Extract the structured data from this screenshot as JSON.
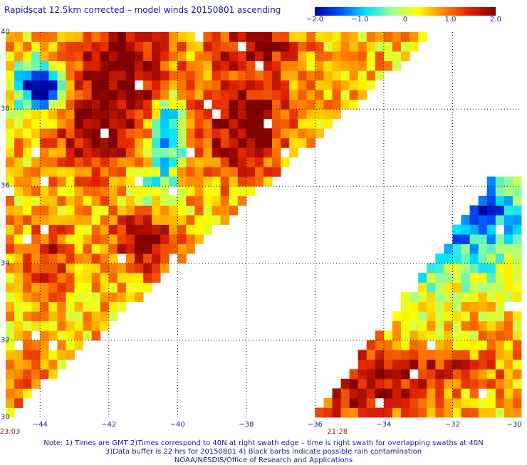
{
  "title": "Rapidscat 12.5km corrected – model winds 20150801 ascending",
  "colorbar": {
    "ticks": [
      {
        "value": -2.0,
        "label": "−2.0"
      },
      {
        "value": -1.0,
        "label": "−1.0"
      },
      {
        "value": 0,
        "label": "0"
      },
      {
        "value": 1.0,
        "label": "1.0"
      },
      {
        "value": 2.0,
        "label": "2.0"
      }
    ],
    "range": [
      -2.0,
      2.0
    ],
    "stops": [
      "#0000a0",
      "#0050ff",
      "#00e0ff",
      "#a0ff90",
      "#ffff00",
      "#ff8000",
      "#e02000",
      "#800000"
    ]
  },
  "map": {
    "lat_range": [
      30,
      40
    ],
    "lon_range": [
      -45,
      -30
    ],
    "lat_ticks": [
      {
        "value": 30,
        "label": "30"
      },
      {
        "value": 32,
        "label": "32"
      },
      {
        "value": 34,
        "label": "34"
      },
      {
        "value": 36,
        "label": "36"
      },
      {
        "value": 38,
        "label": "38"
      },
      {
        "value": 40,
        "label": "40"
      }
    ],
    "lon_ticks": [
      {
        "value": -44,
        "label": "−44"
      },
      {
        "value": -42,
        "label": "−42"
      },
      {
        "value": -40,
        "label": "−40"
      },
      {
        "value": -38,
        "label": "−38"
      },
      {
        "value": -36,
        "label": "−36"
      },
      {
        "value": -34,
        "label": "−34"
      },
      {
        "value": -32,
        "label": "−32"
      },
      {
        "value": -30,
        "label": "−30"
      }
    ],
    "grid": "dotted",
    "swath_times": [
      {
        "lon": -45,
        "label": "23:03"
      },
      {
        "lon": -35.35,
        "label": "21:28"
      }
    ]
  },
  "notes": [
    "Note: 1) Times are GMT 2)Times correspond to 40N at right swath edge – time is right swath for overlapping swaths at 40N",
    "3)Data buffer is 22 hrs for 20150801 4) Black barbs indicate possible rain contamination",
    "NOAA/NESDIS/Office of Research and Applications"
  ]
}
